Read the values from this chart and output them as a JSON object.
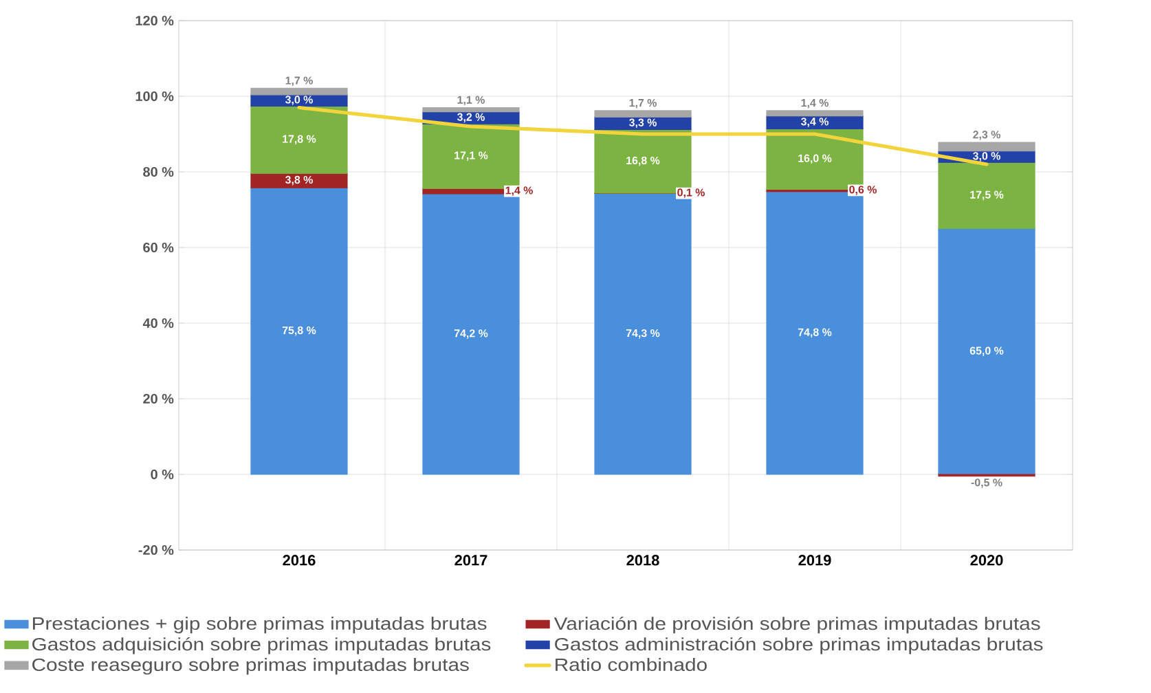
{
  "chart_data": {
    "type": "bar",
    "stacked": true,
    "categories": [
      "2016",
      "2017",
      "2018",
      "2019",
      "2020"
    ],
    "series": [
      {
        "name": "Prestaciones + gip sobre primas imputadas brutas",
        "color": "#4a8fdc",
        "values": [
          75.8,
          74.2,
          74.3,
          74.8,
          65.0
        ],
        "value_labels": [
          "75,8 %",
          "74,2 %",
          "74,3 %",
          "74,8 %",
          "65,0 %"
        ]
      },
      {
        "name": "Variación de provisión sobre primas imputadas brutas",
        "color": "#a32424",
        "values": [
          3.8,
          1.4,
          0.1,
          0.6,
          -0.5
        ],
        "value_labels": [
          "3,8 %",
          "1,4 %",
          "0,1 %",
          "0,6 %",
          "-0,5 %"
        ]
      },
      {
        "name": "Gastos adquisición sobre primas imputadas brutas",
        "color": "#7cb342",
        "values": [
          17.8,
          17.1,
          16.8,
          16.0,
          17.5
        ],
        "value_labels": [
          "17,8 %",
          "17,1 %",
          "16,8 %",
          "16,0 %",
          "17,5 %"
        ]
      },
      {
        "name": "Gastos administración sobre primas imputadas brutas",
        "color": "#2342a8",
        "values": [
          3.0,
          3.2,
          3.3,
          3.4,
          3.0
        ],
        "value_labels": [
          "3,0 %",
          "3,2 %",
          "3,3 %",
          "3,4 %",
          "3,0 %"
        ]
      },
      {
        "name": "Coste reaseguro sobre primas imputadas brutas",
        "color": "#a6a6a6",
        "values": [
          1.7,
          1.1,
          1.7,
          1.4,
          2.3
        ],
        "value_labels": [
          "1,7 %",
          "1,1 %",
          "1,7 %",
          "1,4 %",
          "2,3 %"
        ]
      },
      {
        "name": "Ratio combinado",
        "type": "line",
        "color": "#f2d43c",
        "values": [
          97,
          92,
          90,
          90,
          82
        ]
      }
    ],
    "ylim": [
      -20,
      120
    ],
    "yticks": [
      {
        "value": -20,
        "label": "-20 %"
      },
      {
        "value": 0,
        "label": "0 %"
      },
      {
        "value": 20,
        "label": "20 %"
      },
      {
        "value": 40,
        "label": "40 %"
      },
      {
        "value": 60,
        "label": "60 %"
      },
      {
        "value": 80,
        "label": "80 %"
      },
      {
        "value": 100,
        "label": "100 %"
      },
      {
        "value": 120,
        "label": "120 %"
      }
    ],
    "grid": true,
    "legend": "bottom"
  }
}
